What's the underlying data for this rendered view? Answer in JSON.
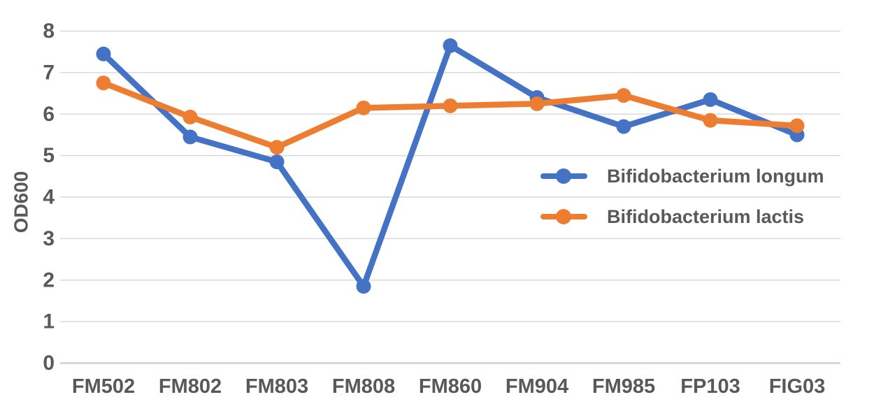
{
  "chart_data": {
    "type": "line",
    "title": "",
    "xlabel": "",
    "ylabel": "OD600",
    "ylim": [
      0,
      8
    ],
    "ytick_step": 1,
    "yticks": [
      0,
      1,
      2,
      3,
      4,
      5,
      6,
      7,
      8
    ],
    "grid": true,
    "legend_position": "inside-right",
    "categories": [
      "FM502",
      "FM802",
      "FM803",
      "FM808",
      "FM860",
      "FM904",
      "FM985",
      "FP103",
      "FIG03"
    ],
    "series": [
      {
        "name": "Bifidobacterium longum",
        "color": "#4472C4",
        "marker": "circle",
        "values": [
          7.45,
          5.45,
          4.85,
          1.85,
          7.65,
          6.4,
          5.7,
          6.35,
          5.5
        ]
      },
      {
        "name": "Bifidobacterium lactis",
        "color": "#ED7D31",
        "marker": "circle",
        "values": [
          6.75,
          5.93,
          5.2,
          6.15,
          6.2,
          6.25,
          6.45,
          5.85,
          5.72
        ]
      }
    ],
    "colors": {
      "axis_text": "#595959",
      "gridline": "#D9D9D9",
      "zeroline": "#D2D2D2",
      "background": "#FFFFFF"
    }
  }
}
